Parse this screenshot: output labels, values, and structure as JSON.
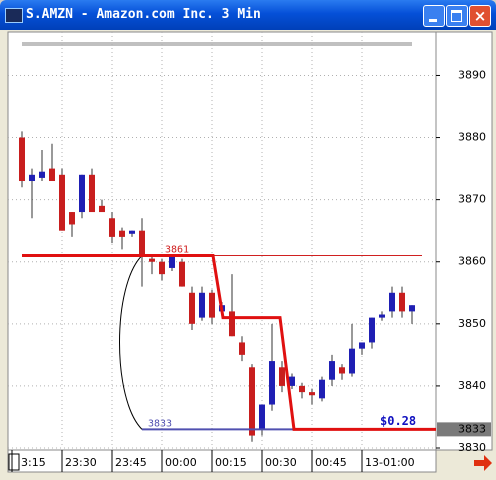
{
  "window_title": "S.AMZN - Amazon.com Inc. 3 Min",
  "chart_data": {
    "type": "candlestick",
    "categories": [
      "3:15",
      null,
      null,
      null,
      null,
      "23:30",
      null,
      null,
      null,
      null,
      "23:45",
      null,
      null,
      null,
      null,
      "00:00",
      null,
      null,
      null,
      null,
      "00:15",
      null,
      null,
      null,
      null,
      "00:30",
      null,
      null,
      null,
      null,
      "00:45",
      null,
      null,
      null,
      null,
      "13-01:00",
      null,
      null,
      null,
      null,
      null
    ],
    "open": [
      null,
      3880,
      3873,
      3873.5,
      3875,
      3874,
      3868,
      3868,
      3874,
      3869,
      3867,
      3865,
      3864.5,
      3865,
      3860.5,
      3860,
      3859,
      3860,
      3855,
      3851,
      3855,
      3852,
      3852,
      3847,
      3843,
      3833,
      3837,
      3843,
      3840,
      3840,
      3839,
      3838,
      3841,
      3843,
      3842,
      3846,
      3847,
      3851,
      3852,
      3855,
      3852
    ],
    "high": [
      null,
      3881,
      3875,
      3878,
      3879,
      3875,
      3868,
      3874,
      3875,
      3870,
      3868,
      3865.5,
      3865,
      3867,
      3861,
      3860.5,
      3861,
      3860.5,
      3856,
      3856,
      3855.5,
      3853.5,
      3858,
      3848,
      3843.5,
      3837,
      3850,
      3844,
      3842,
      3840.5,
      3839.5,
      3841.5,
      3845,
      3843.5,
      3850,
      3847,
      3851,
      3852,
      3856,
      3856,
      3853
    ],
    "low": [
      null,
      3872,
      3867,
      3873,
      3873,
      3865,
      3864,
      3867,
      3868,
      3868,
      3863,
      3862,
      3864,
      3856,
      3858,
      3857,
      3858.5,
      3856,
      3849,
      3850.5,
      3850,
      3851,
      3848,
      3844,
      3831,
      3832,
      3836,
      3839,
      3839.5,
      3838,
      3837,
      3837.5,
      3840,
      3841,
      3841.5,
      3845,
      3846,
      3850.5,
      3851,
      3851,
      3850
    ],
    "close": [
      null,
      3873,
      3874,
      3874.5,
      3873,
      3865,
      3866,
      3874,
      3868,
      3868,
      3864,
      3864,
      3865,
      3861,
      3860,
      3858,
      3861,
      3856,
      3850,
      3855,
      3851,
      3853,
      3848,
      3845,
      3832,
      3837,
      3844,
      3840,
      3841.5,
      3839,
      3838.5,
      3841,
      3844,
      3842,
      3846,
      3847,
      3851,
      3851.5,
      3855,
      3852,
      3853
    ],
    "up_color": "#1f1fb4",
    "down_color": "#c81e1e",
    "ylim": [
      3830,
      3897
    ],
    "yticks": [
      3830,
      3840,
      3850,
      3860,
      3870,
      3880,
      3890
    ],
    "grid": true,
    "trail": {
      "x": [
        1,
        20.1,
        21.1,
        26.8,
        28.2,
        42.4
      ],
      "values": [
        3861,
        3861,
        3851,
        3851,
        3833,
        3833
      ],
      "color": "#e01010"
    },
    "levels": [
      {
        "value": 3861,
        "label": "3861",
        "color": "#d02020"
      },
      {
        "value": 3833,
        "label": "3833",
        "color": "#5050b0"
      }
    ],
    "profit_label": "$0.28"
  }
}
